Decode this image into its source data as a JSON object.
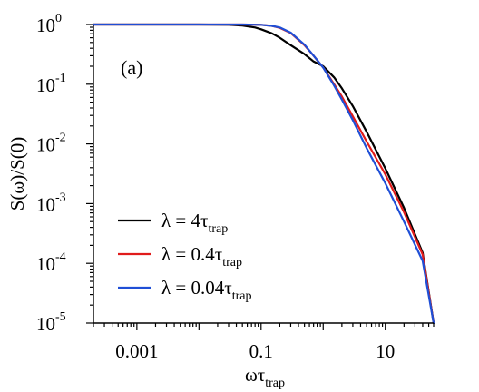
{
  "chart_data": {
    "type": "line",
    "title": "",
    "panel_label": "(a)",
    "xlabel": {
      "base": "ωτ",
      "sub": "trap"
    },
    "ylabel": "S(ω)/S(0)",
    "xscale": "log",
    "yscale": "log",
    "xlim": [
      0.0002,
      60
    ],
    "ylim": [
      1e-05,
      1
    ],
    "xtick_labels": [
      {
        "value": 0.001,
        "label": "0.001"
      },
      {
        "value": 0.1,
        "label": "0.1"
      },
      {
        "value": 10,
        "label": "10"
      }
    ],
    "ytick_labels": [
      {
        "value": 1,
        "base": "10",
        "exp": "0"
      },
      {
        "value": 0.1,
        "base": "10",
        "exp": "-1"
      },
      {
        "value": 0.01,
        "base": "10",
        "exp": "-2"
      },
      {
        "value": 0.001,
        "base": "10",
        "exp": "-3"
      },
      {
        "value": 0.0001,
        "base": "10",
        "exp": "-4"
      },
      {
        "value": 1e-05,
        "base": "10",
        "exp": "-5"
      }
    ],
    "legend_position": "bottom-left",
    "series": [
      {
        "legend": {
          "prefix": "λ = 4τ",
          "sub": "trap"
        },
        "color": "#000000",
        "x": [
          0.0002,
          0.01,
          0.03,
          0.05,
          0.08,
          0.1,
          0.15,
          0.2,
          0.3,
          0.5,
          0.7,
          1.0,
          1.5,
          2,
          3,
          5,
          10,
          20,
          40,
          60
        ],
        "y": [
          1.0,
          1.0,
          0.99,
          0.96,
          0.89,
          0.83,
          0.71,
          0.6,
          0.45,
          0.32,
          0.24,
          0.2,
          0.13,
          0.085,
          0.043,
          0.016,
          0.0039,
          0.00085,
          0.00015,
          1e-05
        ]
      },
      {
        "legend": {
          "prefix": "λ = 0.4τ",
          "sub": "trap"
        },
        "color": "#e01b1b",
        "x": [
          0.0002,
          0.05,
          0.1,
          0.15,
          0.2,
          0.3,
          0.5,
          0.7,
          1.0,
          1.5,
          2,
          3,
          5,
          10,
          20,
          40,
          60
        ],
        "y": [
          1.0,
          1.0,
          0.99,
          0.95,
          0.88,
          0.72,
          0.45,
          0.3,
          0.19,
          0.1,
          0.062,
          0.029,
          0.011,
          0.0031,
          0.00072,
          0.00014,
          1e-05
        ]
      },
      {
        "legend": {
          "prefix": "λ = 0.04τ",
          "sub": "trap"
        },
        "color": "#1f4fd6",
        "x": [
          0.0002,
          0.05,
          0.1,
          0.15,
          0.2,
          0.3,
          0.5,
          0.7,
          1.0,
          1.5,
          2,
          3,
          5,
          10,
          20,
          40,
          60
        ],
        "y": [
          1.0,
          1.0,
          0.99,
          0.95,
          0.89,
          0.73,
          0.46,
          0.3,
          0.19,
          0.095,
          0.055,
          0.025,
          0.0085,
          0.0022,
          0.0005,
          0.00011,
          1e-05
        ]
      }
    ]
  }
}
